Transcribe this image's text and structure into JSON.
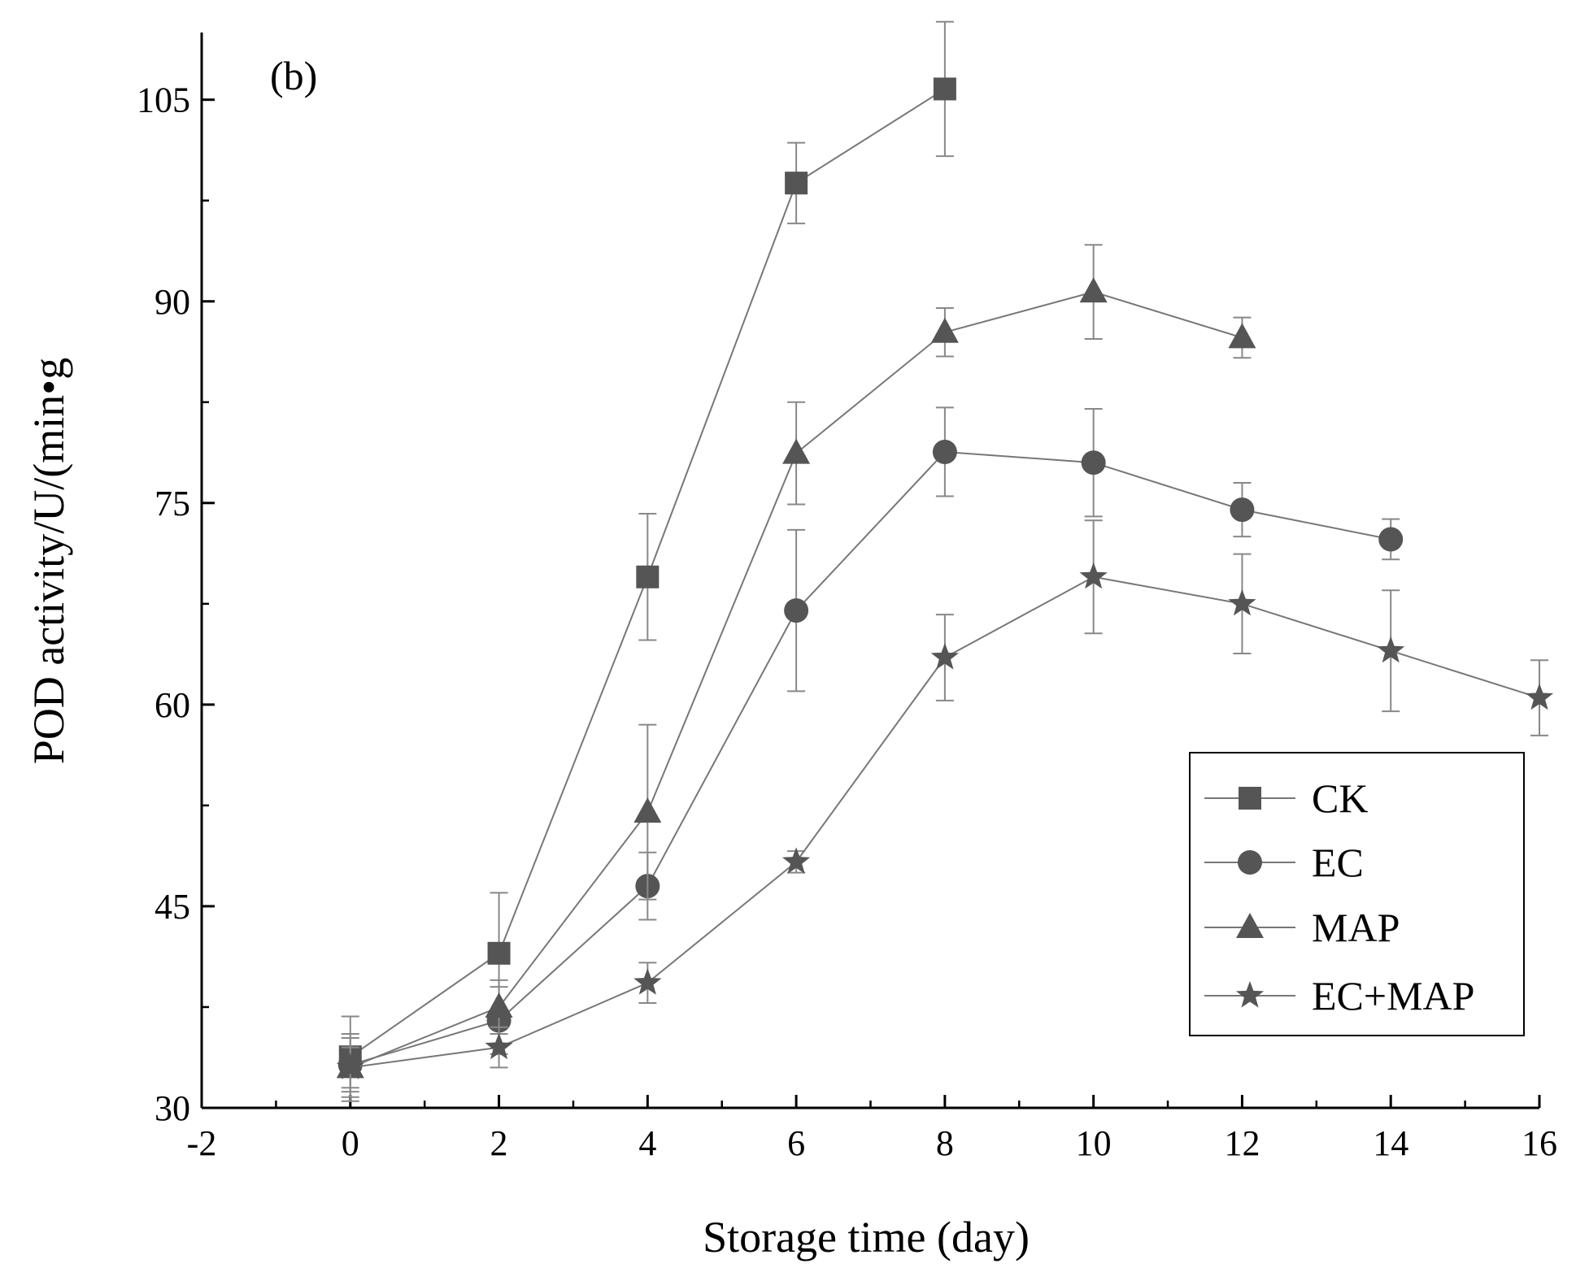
{
  "chart_data": {
    "type": "line",
    "panel_label": "(b)",
    "xlabel": "Storage time (day)",
    "ylabel": "POD activity/U/(min•g",
    "xlim": [
      -2,
      16
    ],
    "ylim": [
      30,
      110
    ],
    "x_ticks": [
      "-2",
      "0",
      "2",
      "4",
      "6",
      "8",
      "10",
      "12",
      "14",
      "16"
    ],
    "x_tick_values": [
      -2,
      0,
      2,
      4,
      6,
      8,
      10,
      12,
      14,
      16
    ],
    "y_ticks": [
      "30",
      "45",
      "60",
      "75",
      "90",
      "105"
    ],
    "y_tick_values": [
      30,
      45,
      60,
      75,
      90,
      105
    ],
    "x_minor_step": 1,
    "y_minor_step": 7.5,
    "legend_position": "bottom-right",
    "series_color": "#555555",
    "series": [
      {
        "name": "CK",
        "marker": "square",
        "x": [
          0,
          2,
          4,
          6,
          8
        ],
        "values": [
          33.8,
          41.5,
          69.5,
          98.8,
          105.8
        ],
        "errors": [
          3.0,
          4.5,
          4.7,
          3.0,
          5.0
        ]
      },
      {
        "name": "EC",
        "marker": "circle",
        "x": [
          0,
          2,
          4,
          6,
          8,
          10,
          12,
          14
        ],
        "values": [
          33.2,
          36.5,
          46.5,
          67.0,
          78.8,
          78.0,
          74.5,
          72.3
        ],
        "errors": [
          2.0,
          2.5,
          2.5,
          6.0,
          3.3,
          4.0,
          2.0,
          1.5
        ]
      },
      {
        "name": "MAP",
        "marker": "triangle",
        "x": [
          0,
          2,
          4,
          6,
          8,
          10,
          12
        ],
        "values": [
          33.0,
          37.5,
          52.0,
          78.7,
          87.7,
          90.7,
          87.3
        ],
        "errors": [
          1.5,
          2.0,
          6.5,
          3.8,
          1.8,
          3.5,
          1.5
        ]
      },
      {
        "name": "EC+MAP",
        "marker": "star",
        "x": [
          0,
          2,
          4,
          6,
          8,
          10,
          12,
          14,
          16
        ],
        "values": [
          33.0,
          34.5,
          39.3,
          48.3,
          63.5,
          69.5,
          67.5,
          64.0,
          60.5
        ],
        "errors": [
          2.5,
          1.5,
          1.5,
          0.8,
          3.2,
          4.2,
          3.7,
          4.5,
          2.8
        ]
      }
    ]
  }
}
